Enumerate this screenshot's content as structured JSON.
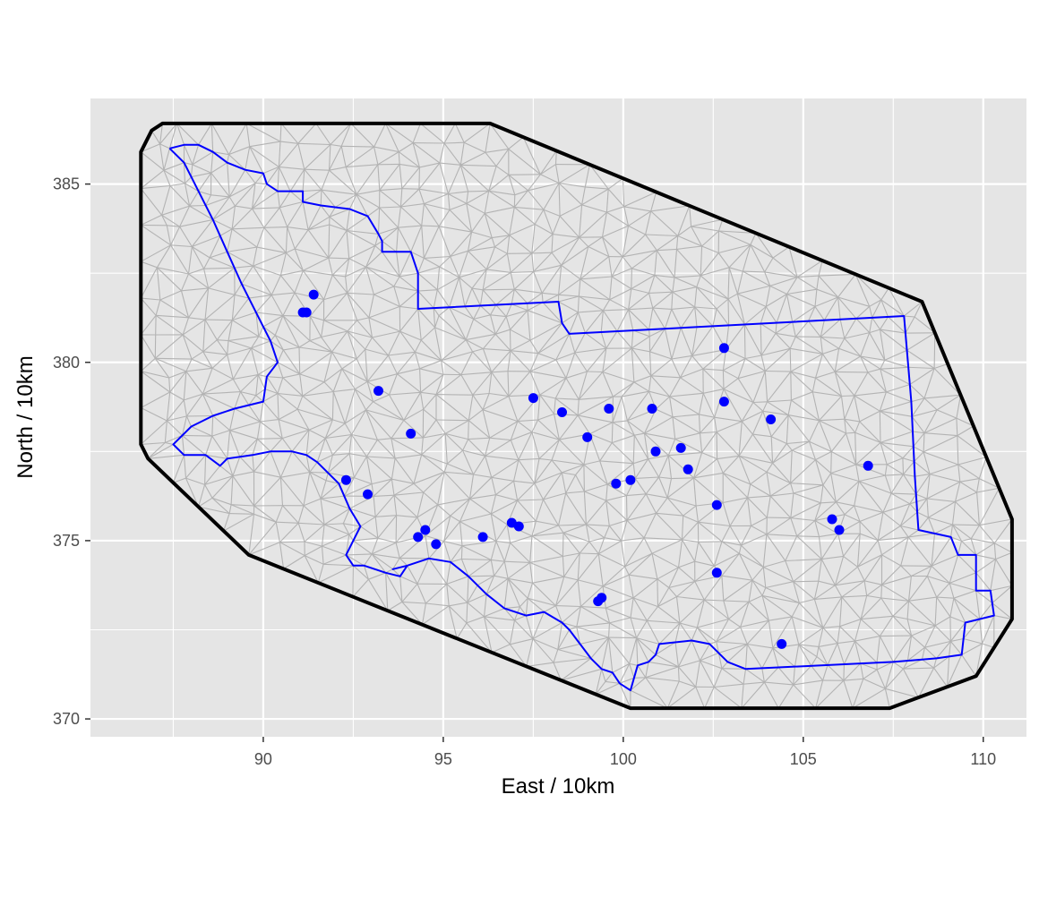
{
  "chart_data": {
    "type": "scatter",
    "title": "",
    "xlabel": "East / 10km",
    "ylabel": "North / 10km",
    "xlim": [
      85.2,
      111.2
    ],
    "ylim": [
      369.5,
      387.4
    ],
    "x_ticks": [
      90,
      95,
      100,
      105,
      110
    ],
    "y_ticks": [
      370,
      375,
      380,
      385
    ],
    "x_tick_labels": [
      "90",
      "95",
      "100",
      "105",
      "110"
    ],
    "y_tick_labels": [
      "370",
      "375",
      "380",
      "385"
    ],
    "grid": true,
    "legend": "none",
    "colors": {
      "panel_background": "#e5e5e5",
      "grid_major": "#ffffff",
      "mesh": "#b3b3b3",
      "mesh_outer_boundary": "#000000",
      "region_boundary": "#0000ff",
      "points": "#0000ff"
    },
    "mesh_outer_boundary": [
      [
        87.6,
        386.7
      ],
      [
        96.3,
        386.7
      ],
      [
        108.3,
        381.7
      ],
      [
        110.8,
        375.6
      ],
      [
        110.8,
        372.8
      ],
      [
        110.3,
        372.0
      ],
      [
        109.8,
        371.2
      ],
      [
        107.4,
        370.3
      ],
      [
        100.2,
        370.3
      ],
      [
        89.6,
        374.6
      ],
      [
        86.8,
        377.3
      ],
      [
        86.6,
        377.7
      ],
      [
        86.6,
        385.9
      ],
      [
        86.9,
        386.5
      ],
      [
        87.2,
        386.7
      ],
      [
        87.6,
        386.7
      ]
    ],
    "region_boundary": [
      [
        87.4,
        386.0
      ],
      [
        87.8,
        386.1
      ],
      [
        88.2,
        386.1
      ],
      [
        88.6,
        385.9
      ],
      [
        89.0,
        385.6
      ],
      [
        89.5,
        385.4
      ],
      [
        90.0,
        385.3
      ],
      [
        90.1,
        385.0
      ],
      [
        90.4,
        384.8
      ],
      [
        91.1,
        384.8
      ],
      [
        91.1,
        384.5
      ],
      [
        91.6,
        384.4
      ],
      [
        92.4,
        384.3
      ],
      [
        92.9,
        384.1
      ],
      [
        93.2,
        383.6
      ],
      [
        93.3,
        383.4
      ],
      [
        93.3,
        383.1
      ],
      [
        94.1,
        383.1
      ],
      [
        94.3,
        382.5
      ],
      [
        94.3,
        381.5
      ],
      [
        98.2,
        381.7
      ],
      [
        98.3,
        381.1
      ],
      [
        98.5,
        380.8
      ],
      [
        107.8,
        381.3
      ],
      [
        108.0,
        378.9
      ],
      [
        108.1,
        376.8
      ],
      [
        108.2,
        375.3
      ],
      [
        109.1,
        375.1
      ],
      [
        109.3,
        374.6
      ],
      [
        109.8,
        374.6
      ],
      [
        109.8,
        373.6
      ],
      [
        110.2,
        373.6
      ],
      [
        110.3,
        372.9
      ],
      [
        109.5,
        372.7
      ],
      [
        109.4,
        371.8
      ],
      [
        108.7,
        371.7
      ],
      [
        107.5,
        371.6
      ],
      [
        103.4,
        371.4
      ],
      [
        102.9,
        371.6
      ],
      [
        102.4,
        372.1
      ],
      [
        101.9,
        372.2
      ],
      [
        101.0,
        372.1
      ],
      [
        100.9,
        371.8
      ],
      [
        100.7,
        371.6
      ],
      [
        100.4,
        371.5
      ],
      [
        100.2,
        370.8
      ],
      [
        99.9,
        371.0
      ],
      [
        99.7,
        371.3
      ],
      [
        99.4,
        371.4
      ],
      [
        99.1,
        371.7
      ],
      [
        98.8,
        372.1
      ],
      [
        98.5,
        372.5
      ],
      [
        98.3,
        372.7
      ],
      [
        97.8,
        373.0
      ],
      [
        97.3,
        372.9
      ],
      [
        96.7,
        373.1
      ],
      [
        96.2,
        373.5
      ],
      [
        95.7,
        374.0
      ],
      [
        95.2,
        374.4
      ],
      [
        94.6,
        374.5
      ],
      [
        94.0,
        374.3
      ],
      [
        93.6,
        374.2
      ],
      [
        94.0,
        374.3
      ],
      [
        93.8,
        374.0
      ],
      [
        93.4,
        374.1
      ],
      [
        92.8,
        374.3
      ],
      [
        92.5,
        374.3
      ],
      [
        92.3,
        374.6
      ],
      [
        92.5,
        375.0
      ],
      [
        92.7,
        375.4
      ],
      [
        92.4,
        375.9
      ],
      [
        92.1,
        376.6
      ],
      [
        91.5,
        377.2
      ],
      [
        91.2,
        377.4
      ],
      [
        90.8,
        377.5
      ],
      [
        90.2,
        377.5
      ],
      [
        89.7,
        377.4
      ],
      [
        89.0,
        377.3
      ],
      [
        88.8,
        377.1
      ],
      [
        88.4,
        377.4
      ],
      [
        87.8,
        377.4
      ],
      [
        87.5,
        377.7
      ],
      [
        88.0,
        378.2
      ],
      [
        88.6,
        378.5
      ],
      [
        89.2,
        378.7
      ],
      [
        90.0,
        378.9
      ],
      [
        90.1,
        379.6
      ],
      [
        90.4,
        380.0
      ],
      [
        90.2,
        380.6
      ],
      [
        90.0,
        381.0
      ],
      [
        89.4,
        382.2
      ],
      [
        89.0,
        383.1
      ],
      [
        88.6,
        384.0
      ],
      [
        87.8,
        385.6
      ],
      [
        87.4,
        386.0
      ]
    ],
    "points": [
      {
        "x": 91.4,
        "y": 381.9
      },
      {
        "x": 91.1,
        "y": 381.4
      },
      {
        "x": 91.2,
        "y": 381.4
      },
      {
        "x": 93.2,
        "y": 379.2
      },
      {
        "x": 94.1,
        "y": 378.0
      },
      {
        "x": 92.3,
        "y": 376.7
      },
      {
        "x": 92.9,
        "y": 376.3
      },
      {
        "x": 94.5,
        "y": 375.3
      },
      {
        "x": 94.3,
        "y": 375.1
      },
      {
        "x": 94.8,
        "y": 374.9
      },
      {
        "x": 96.1,
        "y": 375.1
      },
      {
        "x": 96.9,
        "y": 375.5
      },
      {
        "x": 97.1,
        "y": 375.4
      },
      {
        "x": 97.5,
        "y": 379.0
      },
      {
        "x": 98.3,
        "y": 378.6
      },
      {
        "x": 99.0,
        "y": 377.9
      },
      {
        "x": 99.6,
        "y": 378.7
      },
      {
        "x": 99.8,
        "y": 376.6
      },
      {
        "x": 100.2,
        "y": 376.7
      },
      {
        "x": 100.8,
        "y": 378.7
      },
      {
        "x": 100.9,
        "y": 377.5
      },
      {
        "x": 101.6,
        "y": 377.6
      },
      {
        "x": 101.8,
        "y": 377.0
      },
      {
        "x": 99.3,
        "y": 373.3
      },
      {
        "x": 99.4,
        "y": 373.4
      },
      {
        "x": 102.6,
        "y": 376.0
      },
      {
        "x": 102.8,
        "y": 380.4
      },
      {
        "x": 102.8,
        "y": 378.9
      },
      {
        "x": 104.1,
        "y": 378.4
      },
      {
        "x": 102.6,
        "y": 374.1
      },
      {
        "x": 104.4,
        "y": 372.1
      },
      {
        "x": 105.8,
        "y": 375.6
      },
      {
        "x": 106.0,
        "y": 375.3
      },
      {
        "x": 106.8,
        "y": 377.1
      }
    ]
  }
}
